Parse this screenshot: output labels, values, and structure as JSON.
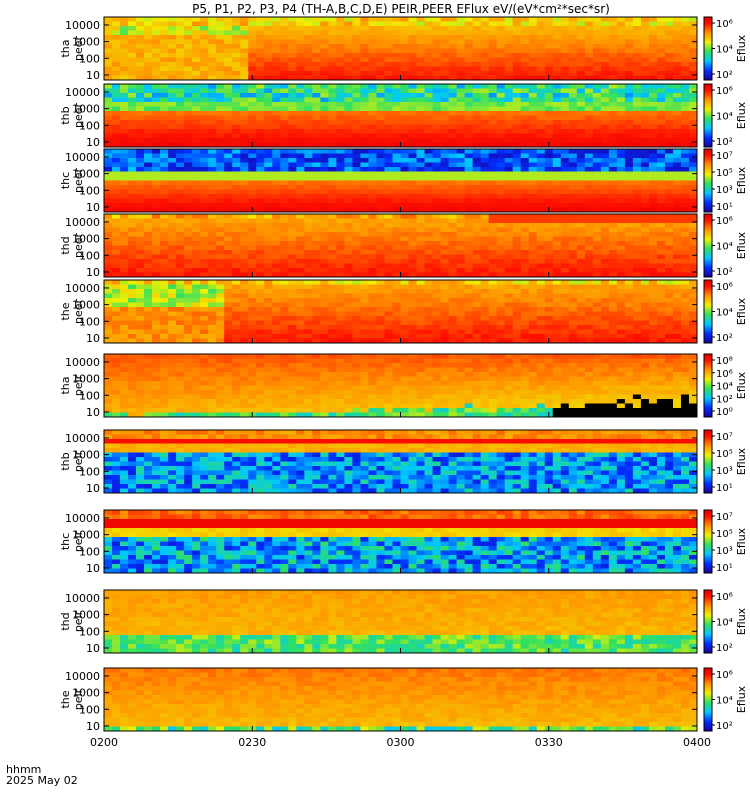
{
  "chart_data": {
    "type": "heatmap",
    "title": "P5, P1, P2, P3, P4 (TH-A,B,C,D,E) PEIR,PEER EFlux eV/(eV*cm²*sec*sr)",
    "x_axis": {
      "ticks": [
        "0200",
        "0230",
        "0300",
        "0330",
        "0400"
      ],
      "range": [
        "02:00",
        "04:00"
      ],
      "label_line1": "hhmm",
      "label_line2": "2025 May 02"
    },
    "y_scale": "log",
    "y_range": [
      5,
      30000
    ],
    "y_ticks": [
      "10",
      "100",
      "1000",
      "10000"
    ],
    "colorbar_label": "Eflux",
    "panels": [
      {
        "probe": "tha",
        "species": "peer",
        "style": "peer_a",
        "zlog_range": [
          1,
          6
        ],
        "zticks": [
          "10²",
          "10⁴",
          "10⁶"
        ]
      },
      {
        "probe": "thb",
        "species": "peer",
        "style": "peer_b",
        "zlog_range": [
          1,
          6
        ],
        "zticks": [
          "10²",
          "10⁴",
          "10⁶"
        ]
      },
      {
        "probe": "thc",
        "species": "peer",
        "style": "peer_c",
        "zlog_range": [
          1,
          8
        ],
        "zticks": [
          "10¹",
          "10³",
          "10⁵",
          "10⁷"
        ]
      },
      {
        "probe": "thd",
        "species": "peer",
        "style": "peer_d",
        "zlog_range": [
          1,
          6
        ],
        "zticks": [
          "10²",
          "10⁴",
          "10⁶"
        ]
      },
      {
        "probe": "the",
        "species": "peer",
        "style": "peer_e",
        "zlog_range": [
          1,
          6
        ],
        "zticks": [
          "10²",
          "10⁴",
          "10⁶"
        ]
      },
      {
        "probe": "tha",
        "species": "peir",
        "style": "peir_a",
        "zlog_range": [
          0,
          8
        ],
        "zticks": [
          "10⁰",
          "10²",
          "10⁴",
          "10⁶",
          "10⁸"
        ]
      },
      {
        "probe": "thb",
        "species": "peir",
        "style": "peir_b",
        "zlog_range": [
          1,
          7
        ],
        "zticks": [
          "10¹",
          "10³",
          "10⁵",
          "10⁷"
        ]
      },
      {
        "probe": "thc",
        "species": "peir",
        "style": "peir_c",
        "zlog_range": [
          1,
          7
        ],
        "zticks": [
          "10¹",
          "10³",
          "10⁵",
          "10⁷"
        ]
      },
      {
        "probe": "thd",
        "species": "peir",
        "style": "peir_d",
        "zlog_range": [
          1,
          7
        ],
        "zticks": [
          "10²",
          "10⁴",
          "10⁶"
        ]
      },
      {
        "probe": "the",
        "species": "peir",
        "style": "peir_e",
        "zlog_range": [
          1,
          7
        ],
        "zticks": [
          "10²",
          "10⁴",
          "10⁶"
        ]
      }
    ]
  }
}
